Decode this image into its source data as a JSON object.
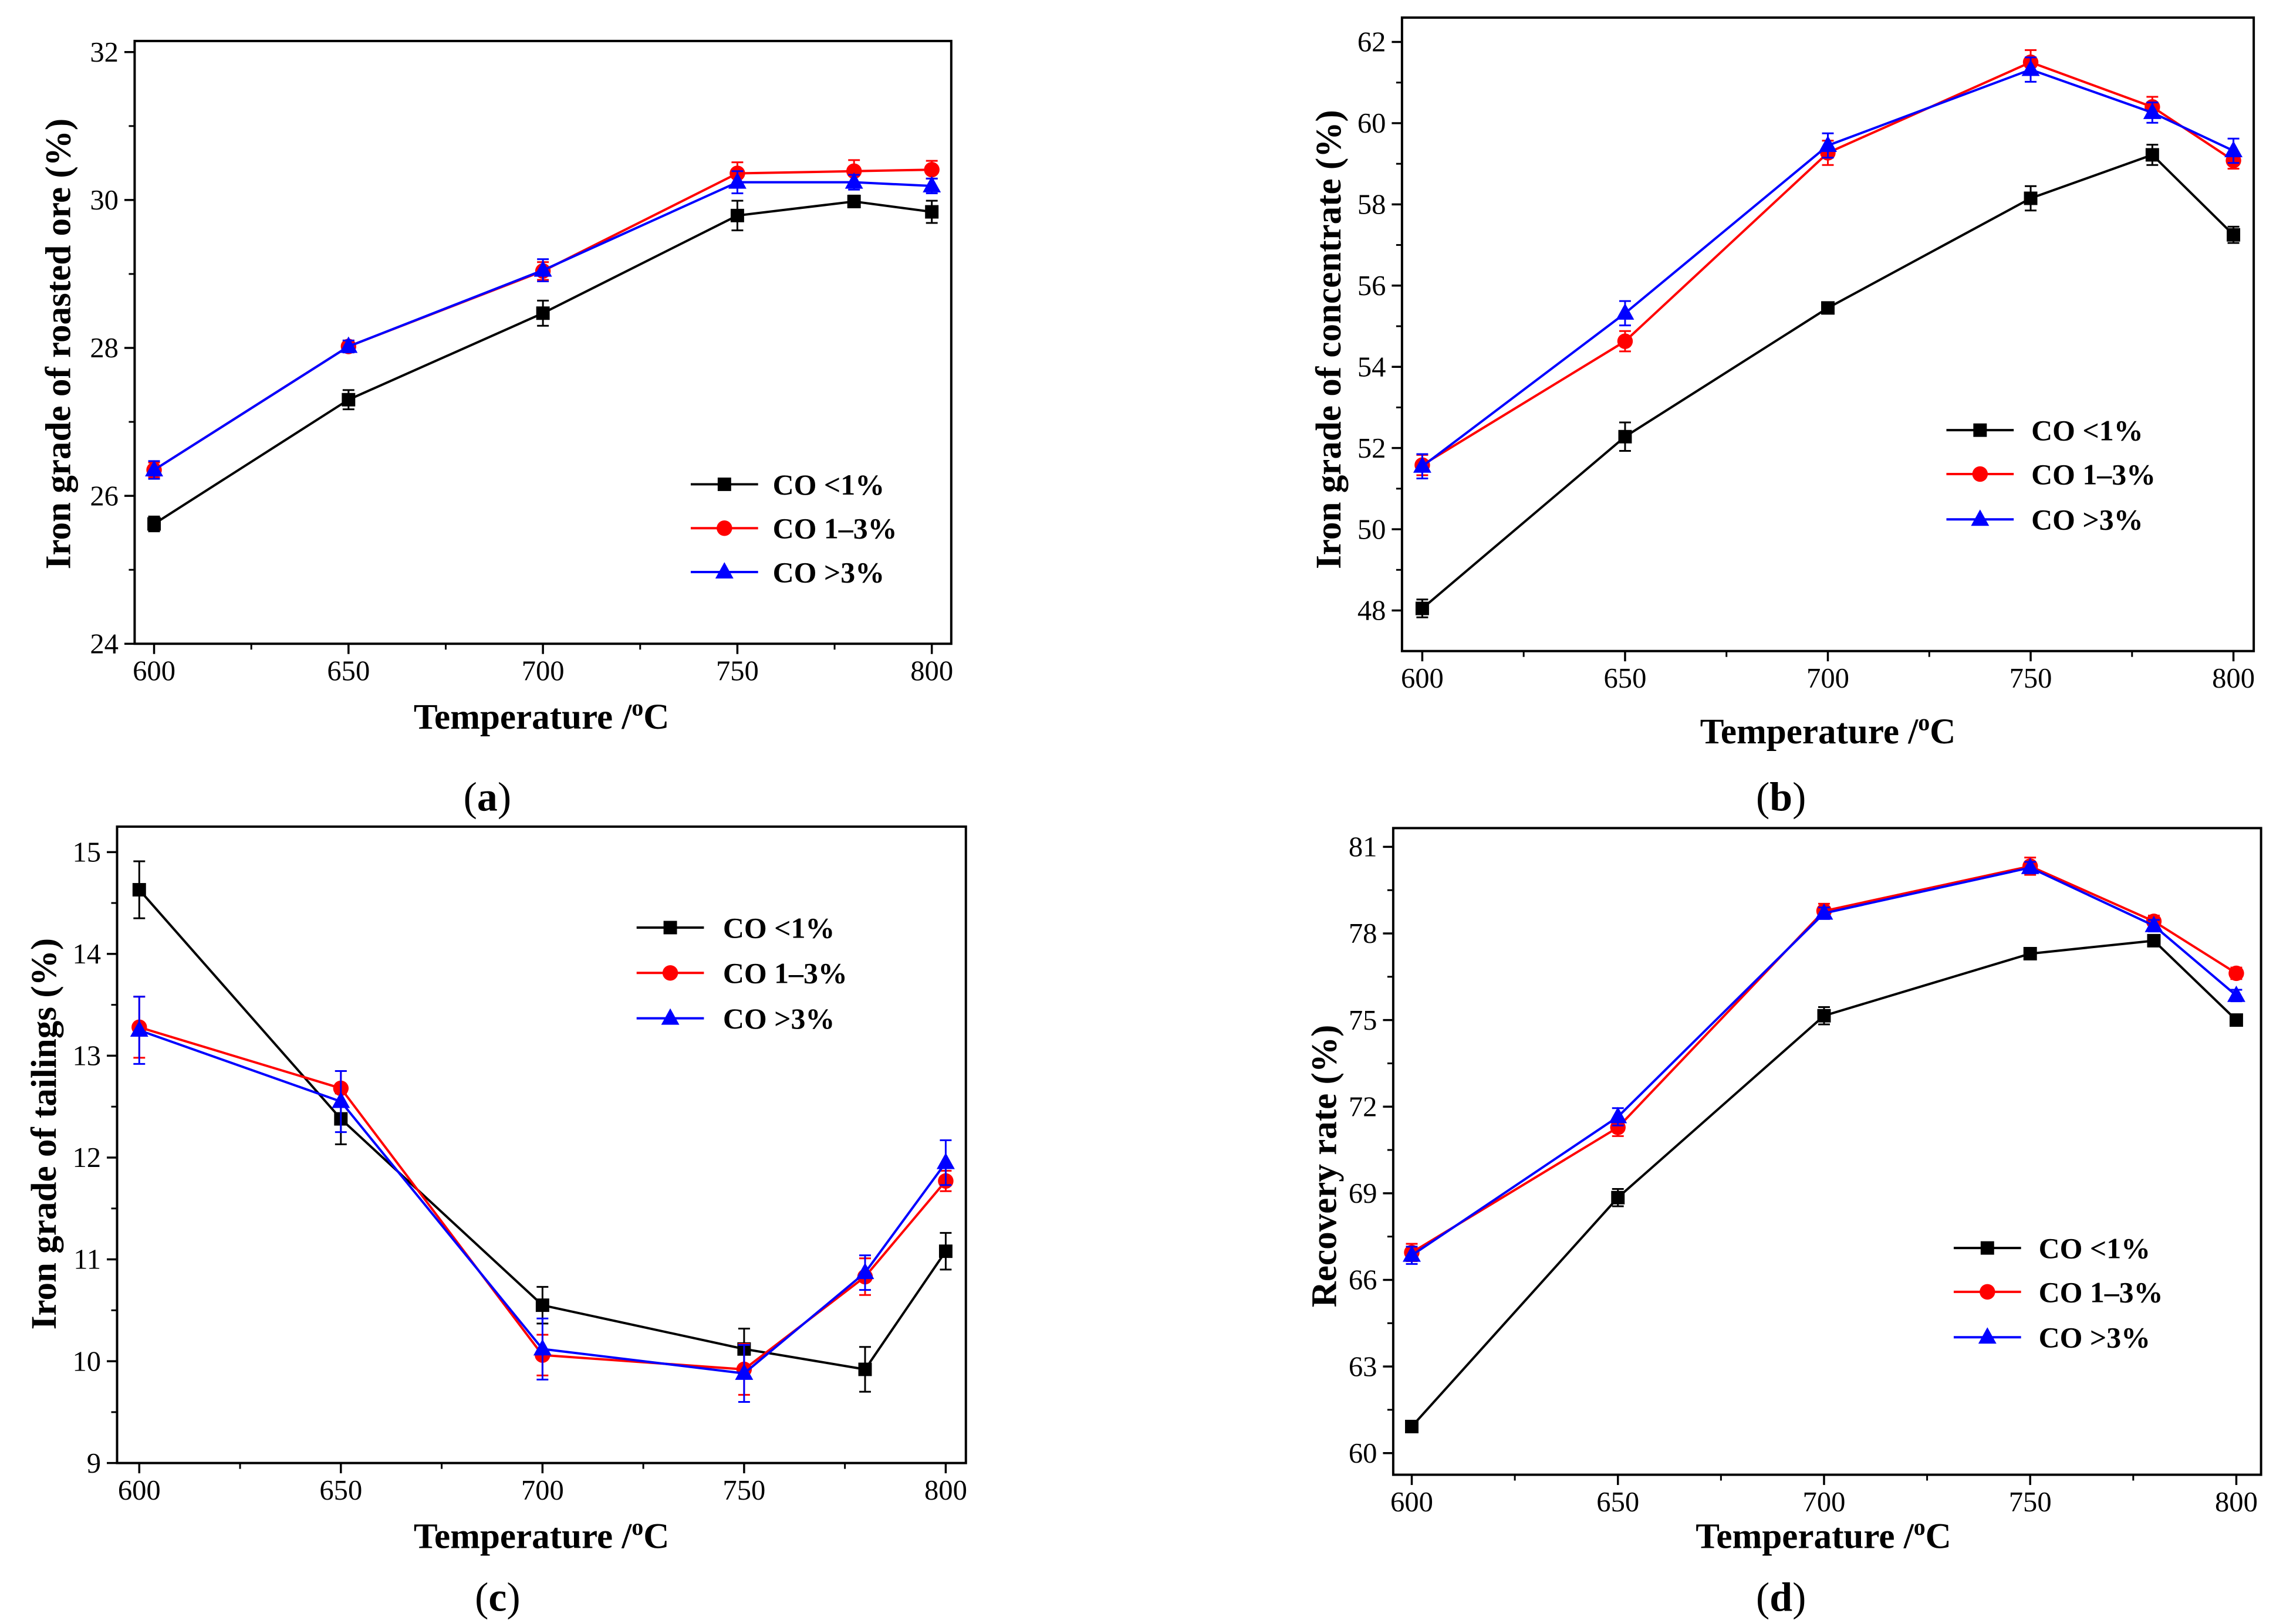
{
  "chart_data": [
    {
      "type": "line",
      "panel_label": [
        "(",
        "a",
        ")"
      ],
      "xlabel": [
        "Temperature /",
        "o",
        "C"
      ],
      "ylabel": "Iron grade of roasted ore (%)",
      "xlim": [
        595,
        805
      ],
      "ylim": [
        24,
        32.15
      ],
      "xticks": [
        600,
        650,
        700,
        750,
        800
      ],
      "xminor": [
        625,
        675,
        725,
        775
      ],
      "yticks": [
        24,
        26,
        28,
        30,
        32
      ],
      "yminor": [
        25,
        27,
        29,
        31
      ],
      "grid": false,
      "legend_position": "lower-right",
      "x": [
        600,
        650,
        700,
        750,
        780,
        800
      ],
      "series": [
        {
          "name": "CO <1%",
          "color": "#000000",
          "marker": "square",
          "values": [
            25.62,
            27.3,
            28.47,
            29.79,
            29.98,
            29.84
          ],
          "errors": [
            0.1,
            0.13,
            0.17,
            0.2,
            0.08,
            0.15
          ]
        },
        {
          "name": "CO 1–3%",
          "color": "#ff0000",
          "marker": "circle",
          "values": [
            26.35,
            28.02,
            29.04,
            30.36,
            30.39,
            30.41
          ],
          "errors": [
            0.1,
            0.08,
            0.12,
            0.15,
            0.15,
            0.12
          ]
        },
        {
          "name": "CO >3%",
          "color": "#0000ff",
          "marker": "triangle",
          "values": [
            26.35,
            28.02,
            29.05,
            30.24,
            30.24,
            30.19
          ],
          "errors": [
            0.12,
            0.08,
            0.15,
            0.15,
            0.1,
            0.1
          ]
        }
      ]
    },
    {
      "type": "line",
      "panel_label": [
        "(",
        "b",
        ")"
      ],
      "xlabel": [
        "Temperature /",
        "o",
        "C"
      ],
      "ylabel": "Iron grade of concentrate (%)",
      "xlim": [
        595,
        805
      ],
      "ylim": [
        47,
        62.6
      ],
      "xticks": [
        600,
        650,
        700,
        750,
        800
      ],
      "xminor": [
        625,
        675,
        725,
        775
      ],
      "yticks": [
        48,
        50,
        52,
        54,
        56,
        58,
        60,
        62
      ],
      "yminor": [
        49,
        51,
        53,
        55,
        57,
        59,
        61
      ],
      "grid": false,
      "legend_position": "center-right",
      "x": [
        600,
        650,
        700,
        750,
        780,
        800
      ],
      "series": [
        {
          "name": "CO <1%",
          "color": "#000000",
          "marker": "square",
          "values": [
            48.05,
            52.28,
            55.45,
            58.15,
            59.22,
            57.25
          ],
          "errors": [
            0.22,
            0.35,
            0.1,
            0.3,
            0.25,
            0.2
          ]
        },
        {
          "name": "CO 1–3%",
          "color": "#ff0000",
          "marker": "circle",
          "values": [
            51.58,
            54.63,
            59.27,
            61.5,
            60.4,
            59.08
          ],
          "errors": [
            0.25,
            0.25,
            0.3,
            0.3,
            0.25,
            0.2
          ]
        },
        {
          "name": "CO >3%",
          "color": "#0000ff",
          "marker": "triangle",
          "values": [
            51.55,
            55.32,
            59.45,
            61.32,
            60.26,
            59.32
          ],
          "errors": [
            0.3,
            0.3,
            0.3,
            0.3,
            0.25,
            0.3
          ]
        }
      ]
    },
    {
      "type": "line",
      "panel_label": [
        "(",
        "c",
        ")"
      ],
      "xlabel": [
        "Temperature /",
        "o",
        "C"
      ],
      "ylabel": "Iron grade of tailings (%)",
      "xlim": [
        594.5,
        805
      ],
      "ylim": [
        9,
        15.25
      ],
      "xticks": [
        600,
        650,
        700,
        750,
        800
      ],
      "xminor": [
        625,
        675,
        725,
        775
      ],
      "yticks": [
        9,
        10,
        11,
        12,
        13,
        14,
        15
      ],
      "yminor": [
        9.5,
        10.5,
        11.5,
        12.5,
        13.5,
        14.5
      ],
      "grid": false,
      "legend_position": "upper-right",
      "x": [
        600,
        650,
        700,
        750,
        780,
        800
      ],
      "series": [
        {
          "name": "CO <1%",
          "color": "#000000",
          "marker": "square",
          "values": [
            14.63,
            12.38,
            10.55,
            10.12,
            9.92,
            11.08
          ],
          "errors": [
            0.28,
            0.25,
            0.18,
            0.2,
            0.22,
            0.18
          ]
        },
        {
          "name": "CO 1–3%",
          "color": "#ff0000",
          "marker": "circle",
          "values": [
            13.28,
            12.68,
            10.06,
            9.92,
            10.83,
            11.77
          ],
          "errors": [
            0.3,
            0.17,
            0.2,
            0.25,
            0.18,
            0.1
          ]
        },
        {
          "name": "CO >3%",
          "color": "#0000ff",
          "marker": "triangle",
          "values": [
            13.25,
            12.55,
            10.12,
            9.88,
            10.87,
            11.95
          ],
          "errors": [
            0.33,
            0.3,
            0.3,
            0.28,
            0.17,
            0.22
          ]
        }
      ]
    },
    {
      "type": "line",
      "panel_label": [
        "(",
        "d",
        ")"
      ],
      "xlabel": [
        "Temperature /",
        "o",
        "C"
      ],
      "ylabel": "Recovery rate (%)",
      "xlim": [
        595.5,
        806
      ],
      "ylim": [
        59.25,
        81.65
      ],
      "xticks": [
        600,
        650,
        700,
        750,
        800
      ],
      "xminor": [
        625,
        675,
        725,
        775
      ],
      "yticks": [
        60,
        63,
        66,
        69,
        72,
        75,
        78,
        81
      ],
      "yminor": [
        61.5,
        64.5,
        67.5,
        70.5,
        73.5,
        76.5,
        79.5
      ],
      "grid": false,
      "legend_position": "lower-right",
      "x": [
        600,
        650,
        700,
        750,
        780,
        800
      ],
      "series": [
        {
          "name": "CO <1%",
          "color": "#000000",
          "marker": "square",
          "values": [
            60.92,
            68.85,
            75.15,
            77.3,
            77.75,
            75.0
          ],
          "errors": [
            0.2,
            0.3,
            0.3,
            0.1,
            0.2,
            0.1
          ]
        },
        {
          "name": "CO 1–3%",
          "color": "#ff0000",
          "marker": "circle",
          "values": [
            66.95,
            71.28,
            78.78,
            80.33,
            78.42,
            76.62
          ],
          "errors": [
            0.3,
            0.3,
            0.25,
            0.3,
            0.2,
            0.2
          ]
        },
        {
          "name": "CO >3%",
          "color": "#0000ff",
          "marker": "triangle",
          "values": [
            66.85,
            71.65,
            78.7,
            80.28,
            78.27,
            75.85
          ],
          "errors": [
            0.3,
            0.3,
            0.2,
            0.2,
            0.2,
            0.2
          ]
        }
      ]
    }
  ]
}
